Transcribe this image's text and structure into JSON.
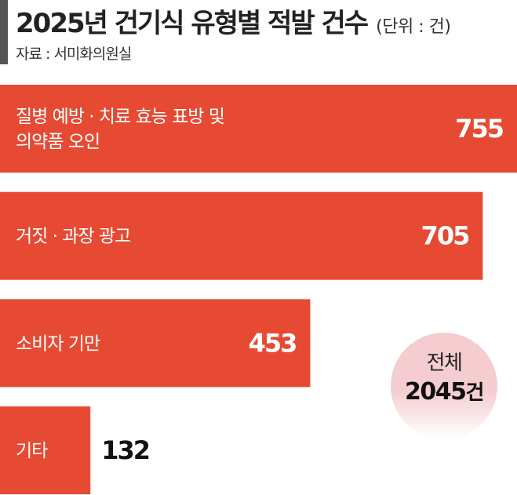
{
  "header": {
    "title": "2025년 건기식 유형별 적발 건수",
    "unit": "(단위 : 건)",
    "source": "자료 : 서미화의원실"
  },
  "total": {
    "label": "전체",
    "value": "2045",
    "suffix": "건"
  },
  "colors": {
    "bar": "#e64a33",
    "label_on_bar": "#ffffff",
    "value_outside": "#111111",
    "total_circle": "#f5cdd0",
    "title_accent": "#555555"
  },
  "chart_data": {
    "type": "bar",
    "orientation": "horizontal",
    "categories": [
      [
        "질병 예방 · 치료 효능 표방 및",
        "의약품 오인"
      ],
      [
        "거짓 · 과장 광고"
      ],
      [
        "소비자 기만"
      ],
      [
        "기타"
      ]
    ],
    "values": [
      755,
      705,
      453,
      132
    ],
    "value_labels": [
      "755",
      "705",
      "453",
      "132"
    ],
    "title": "2025년 건기식 유형별 적발 건수",
    "unit": "(단위 : 건)",
    "xlim": [
      0,
      755
    ],
    "grid": false
  }
}
